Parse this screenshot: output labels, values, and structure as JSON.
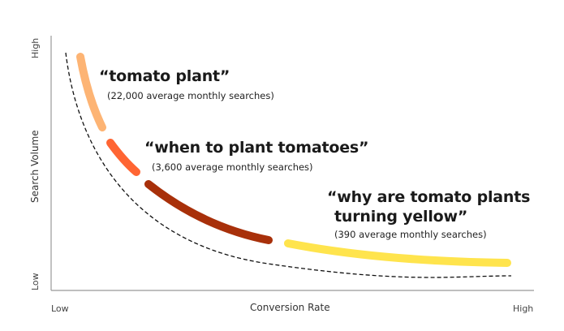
{
  "axes": {
    "x_label": "Conversion Rate",
    "x_low": "Low",
    "x_high": "High",
    "y_label": "Search Volume",
    "y_low": "Low",
    "y_high": "High"
  },
  "keywords": [
    {
      "phrase": "“tomato plant”",
      "volume": "(22,000 average monthly searches)",
      "color": "#FDB474"
    },
    {
      "phrase": "“when to plant tomatoes”",
      "volume": "(3,600 average monthly searches)",
      "color": "#FF6533"
    },
    {
      "phrase": "",
      "volume": "",
      "color": "#A8300A"
    },
    {
      "phrase_line1": "“why are tomato plants",
      "phrase_line2": "turning yellow”",
      "volume": "(390 average monthly searches)",
      "color": "#FFE44D"
    }
  ]
}
